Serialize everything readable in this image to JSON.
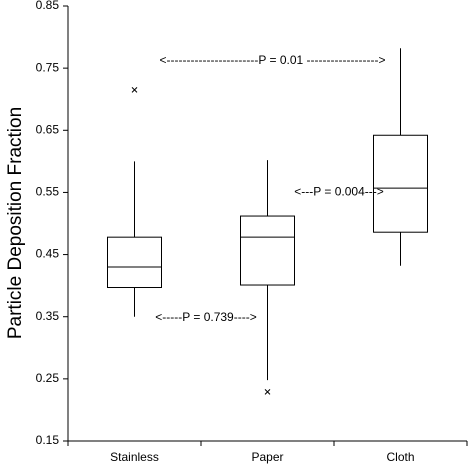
{
  "chart_data": {
    "type": "box",
    "y_label": "Particle Deposition Fraction",
    "categories": [
      "Stainless",
      "Paper",
      "Cloth"
    ],
    "boxes": [
      {
        "min": 0.35,
        "q1": 0.397,
        "median": 0.43,
        "q3": 0.478,
        "max": 0.6,
        "outliers": [
          0.715
        ]
      },
      {
        "min": 0.248,
        "q1": 0.401,
        "median": 0.478,
        "q3": 0.512,
        "max": 0.602,
        "outliers": [
          0.229
        ]
      },
      {
        "min": 0.432,
        "q1": 0.486,
        "median": 0.557,
        "q3": 0.642,
        "max": 0.782,
        "outliers": []
      }
    ],
    "ylim": [
      0.15,
      0.85
    ],
    "yticks": [
      0.15,
      0.25,
      0.35,
      0.45,
      0.55,
      0.65,
      0.75,
      0.85
    ],
    "annotations": [
      {
        "text": "<-----------------------P = 0.01 ------------------>",
        "from": 0,
        "to": 2,
        "y": 0.762
      },
      {
        "text": "<---P = 0.004--->",
        "from": 1,
        "to": 2,
        "y": 0.55
      },
      {
        "text": "<-----P = 0.739---->",
        "from": 0,
        "to": 1,
        "y": 0.348
      }
    ]
  }
}
